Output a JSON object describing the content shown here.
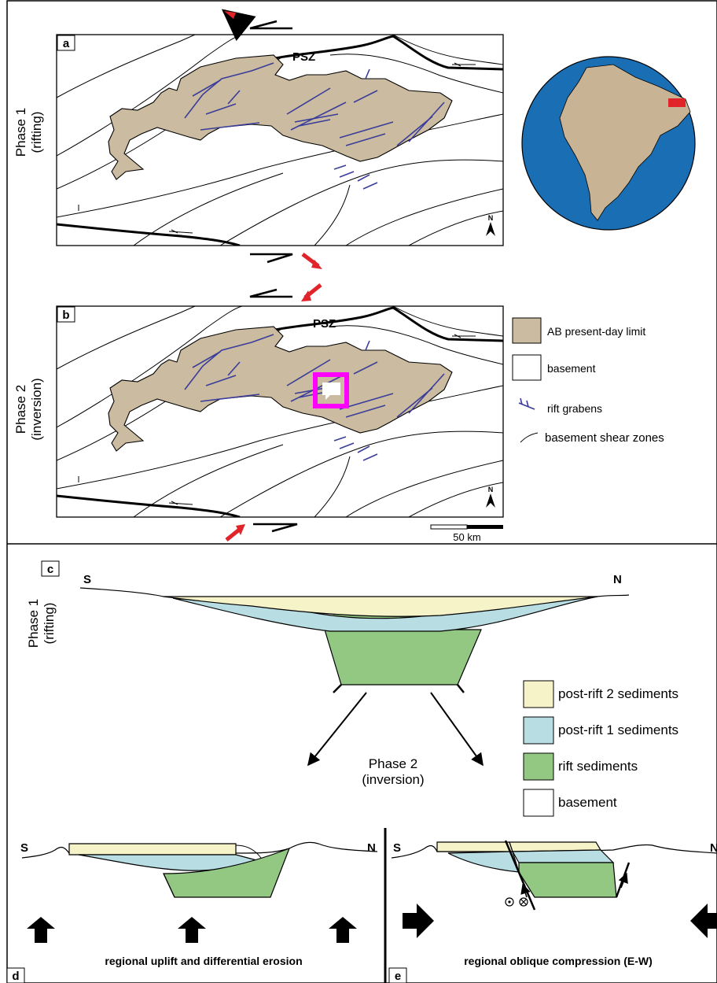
{
  "figure": {
    "colors": {
      "basin_fill": "#cbbba0",
      "graben_blue": "#3a3d9a",
      "post_rift_2": "#f6f3c8",
      "post_rift_1": "#b8dde3",
      "rift_sediments": "#93c883",
      "ocean_blue": "#1a6eb3",
      "continent": "#c8b394",
      "arrow_red": "#e0242a",
      "marker_magenta": "#ff00ff"
    },
    "panel_a": {
      "letter": "a",
      "row_label": "Phase 1\n(rifting)",
      "psz": "PSZ",
      "north": "N"
    },
    "panel_b": {
      "letter": "b",
      "row_label": "Phase 2\n(inversion)",
      "psz": "PSZ",
      "north": "N",
      "scale": "50 km"
    },
    "map_legend": {
      "items": [
        {
          "label": "AB present-day  limit",
          "symbol": "basin-box"
        },
        {
          "label": "basement",
          "symbol": "white-box"
        },
        {
          "label": "rift grabens",
          "symbol": "graben-icon"
        },
        {
          "label": "basement shear zones",
          "symbol": "shear-icon"
        }
      ]
    },
    "panel_c": {
      "letter": "c",
      "row_label": "Phase 1\n(rifting)",
      "south": "S",
      "north": "N",
      "phase2_label": "Phase 2\n(inversion)"
    },
    "section_legend": {
      "items": [
        {
          "label": "post-rift 2 sediments"
        },
        {
          "label": "post-rift 1 sediments"
        },
        {
          "label": "rift sediments"
        },
        {
          "label": "basement"
        }
      ]
    },
    "panel_d": {
      "letter": "d",
      "south": "S",
      "north": "N",
      "caption": "regional uplift and differential erosion"
    },
    "panel_e": {
      "letter": "e",
      "south": "S",
      "north": "N",
      "caption": "regional oblique compression (E-W)"
    }
  }
}
